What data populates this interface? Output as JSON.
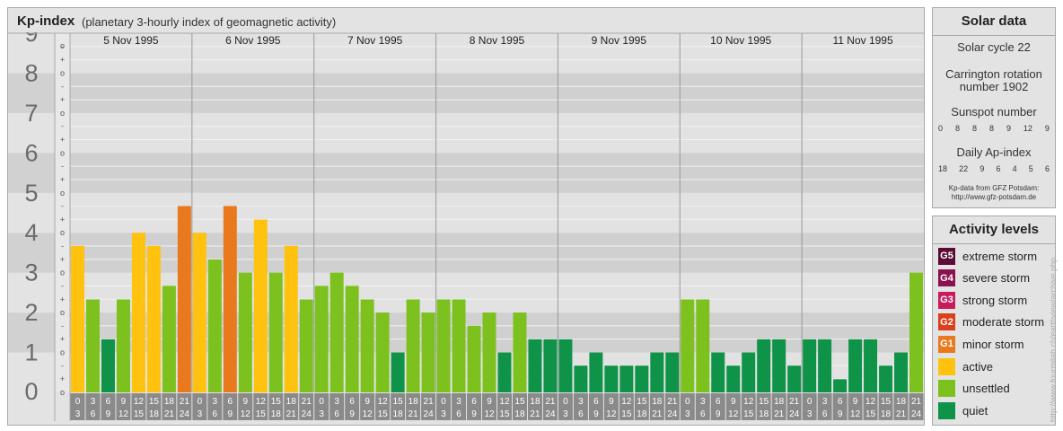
{
  "header": {
    "title": "Kp-index",
    "subtitle": "(planetary 3-hourly index of geomagnetic activity)"
  },
  "colors": {
    "quiet": "#0e9348",
    "unsettled": "#7dc11f",
    "active": "#ffc20e",
    "g1": "#e8791c",
    "g2": "#dc3f1a",
    "g3": "#c81b5e",
    "g4": "#8c1150",
    "g5": "#5a0c35"
  },
  "chart_data": {
    "type": "bar",
    "ylabel": "",
    "ylim": [
      0,
      9
    ],
    "yticks": [
      "0",
      "1",
      "2",
      "3",
      "4",
      "5",
      "6",
      "7",
      "8",
      "9"
    ],
    "subticks": [
      "-",
      "+",
      "o"
    ],
    "days": [
      "5 Nov 1995",
      "6 Nov 1995",
      "7 Nov 1995",
      "8 Nov 1995",
      "9 Nov 1995",
      "10 Nov 1995",
      "11 Nov 1995"
    ],
    "interval_start": [
      "0",
      "3",
      "6",
      "9",
      "12",
      "15",
      "18",
      "21"
    ],
    "interval_end": [
      "3",
      "6",
      "9",
      "12",
      "15",
      "18",
      "21",
      "24"
    ],
    "values": [
      3.67,
      2.33,
      1.33,
      2.33,
      4.0,
      3.67,
      2.67,
      4.67,
      4.0,
      3.33,
      4.67,
      3.0,
      4.33,
      3.0,
      3.67,
      2.33,
      2.67,
      3.0,
      2.67,
      2.33,
      2.0,
      1.0,
      2.33,
      2.0,
      2.33,
      2.33,
      1.67,
      2.0,
      1.0,
      2.0,
      1.33,
      1.33,
      1.33,
      0.67,
      1.0,
      0.67,
      0.67,
      0.67,
      1.0,
      1.0,
      2.33,
      2.33,
      1.0,
      0.67,
      1.0,
      1.33,
      1.33,
      0.67,
      1.33,
      1.33,
      0.33,
      1.33,
      1.33,
      0.67,
      1.0,
      3.0
    ]
  },
  "solar": {
    "title": "Solar data",
    "cycle": "Solar cycle 22",
    "carrington_line1": "Carrington rotation",
    "carrington_line2": "number 1902",
    "sunspot_label": "Sunspot number",
    "sunspot_values": [
      "0",
      "8",
      "8",
      "8",
      "9",
      "12",
      "9"
    ],
    "ap_label": "Daily Ap-index",
    "ap_values": [
      "18",
      "22",
      "9",
      "6",
      "4",
      "5",
      "6"
    ],
    "credit_line1": "Kp-data from GFZ Potsdam:",
    "credit_line2": "http://www.gfz-potsdam.de"
  },
  "activity": {
    "title": "Activity levels",
    "items": [
      {
        "code": "G5",
        "label": "extreme storm",
        "color": "#5a0c35"
      },
      {
        "code": "G4",
        "label": "severe storm",
        "color": "#8c1150"
      },
      {
        "code": "G3",
        "label": "strong storm",
        "color": "#c81b5e"
      },
      {
        "code": "G2",
        "label": "moderate storm",
        "color": "#dc3f1a"
      },
      {
        "code": "G1",
        "label": "minor storm",
        "color": "#e8791c"
      },
      {
        "code": "",
        "label": "active",
        "color": "#ffc20e"
      },
      {
        "code": "",
        "label": "unsettled",
        "color": "#7dc11f"
      },
      {
        "code": "",
        "label": "quiet",
        "color": "#0e9348"
      }
    ]
  },
  "watermark": "http://www.fourmilab.ch/earthview/archive.php"
}
